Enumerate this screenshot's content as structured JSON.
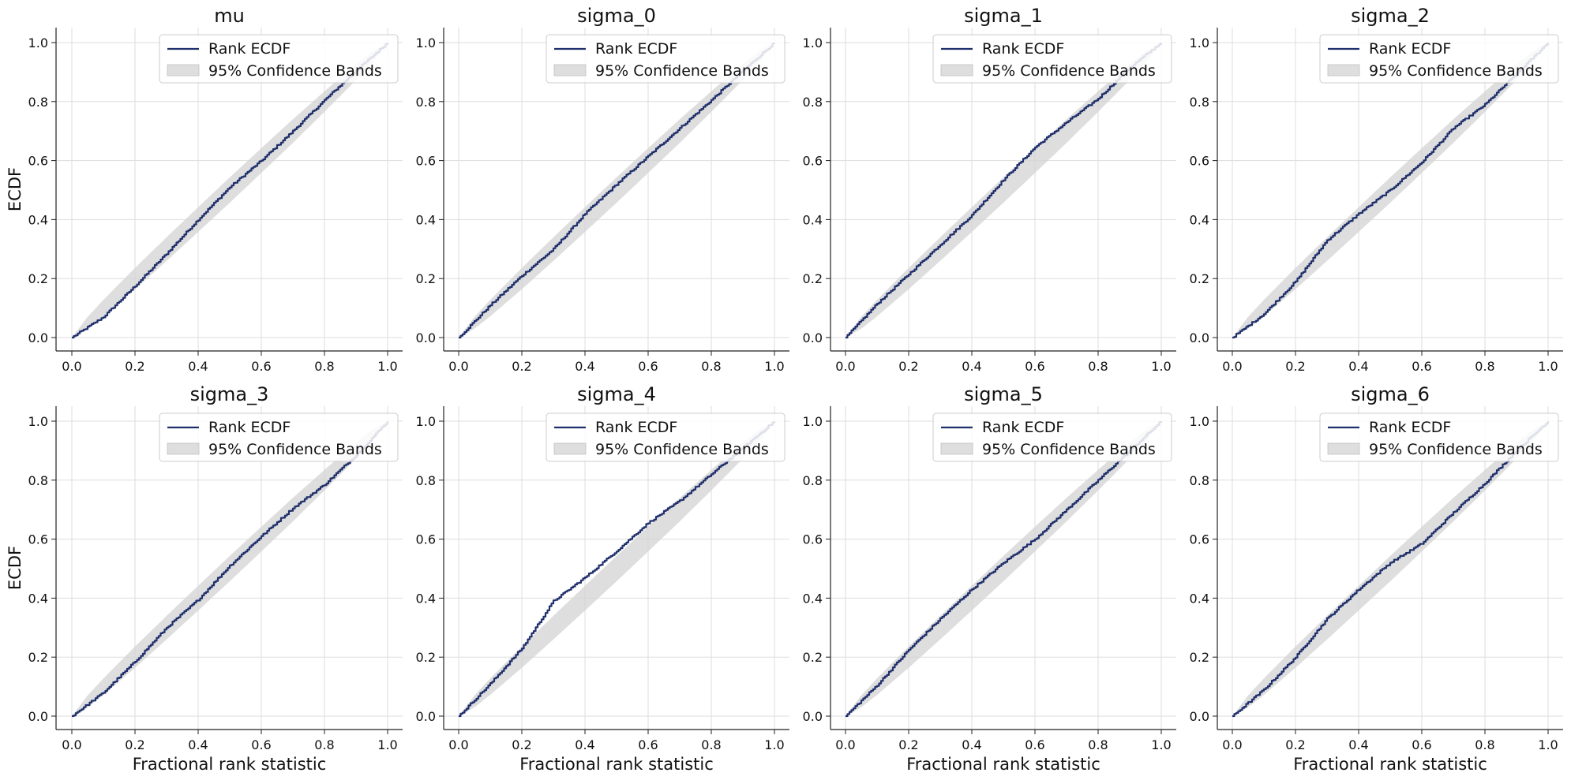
{
  "chart_data": {
    "type": "line",
    "layout_grid": "2x4",
    "shared_xlabel": "Fractional rank statistic",
    "shared_ylabel": "ECDF",
    "xlim": [
      0,
      1
    ],
    "ylim": [
      0,
      1
    ],
    "xticks": [
      "0.0",
      "0.2",
      "0.4",
      "0.6",
      "0.8",
      "1.0"
    ],
    "yticks": [
      "0.0",
      "0.2",
      "0.4",
      "0.6",
      "0.8",
      "1.0"
    ],
    "grid": true,
    "legend_position": "top-right",
    "legend": {
      "line": "Rank ECDF",
      "band": "95% Confidence Bands"
    },
    "colors": {
      "line": "#1f2f6b",
      "band": "#d3d3d3",
      "grid": "#dddddd"
    },
    "band_halfwidth": [
      [
        0,
        0
      ],
      [
        0.05,
        0.02
      ],
      [
        0.1,
        0.028
      ],
      [
        0.2,
        0.036
      ],
      [
        0.3,
        0.04
      ],
      [
        0.4,
        0.042
      ],
      [
        0.5,
        0.043
      ],
      [
        0.6,
        0.042
      ],
      [
        0.7,
        0.04
      ],
      [
        0.8,
        0.035
      ],
      [
        0.9,
        0.027
      ],
      [
        0.95,
        0.02
      ],
      [
        1,
        0
      ]
    ],
    "panels": [
      {
        "title": "mu",
        "points": [
          [
            0,
            0
          ],
          [
            0.1,
            0.07
          ],
          [
            0.2,
            0.175
          ],
          [
            0.3,
            0.285
          ],
          [
            0.4,
            0.4
          ],
          [
            0.5,
            0.51
          ],
          [
            0.6,
            0.6
          ],
          [
            0.7,
            0.7
          ],
          [
            0.8,
            0.805
          ],
          [
            0.9,
            0.905
          ],
          [
            1,
            1
          ]
        ]
      },
      {
        "title": "sigma_0",
        "points": [
          [
            0,
            0
          ],
          [
            0.1,
            0.11
          ],
          [
            0.2,
            0.21
          ],
          [
            0.3,
            0.3
          ],
          [
            0.4,
            0.42
          ],
          [
            0.5,
            0.52
          ],
          [
            0.6,
            0.615
          ],
          [
            0.7,
            0.71
          ],
          [
            0.8,
            0.805
          ],
          [
            0.9,
            0.905
          ],
          [
            1,
            1
          ]
        ]
      },
      {
        "title": "sigma_1",
        "points": [
          [
            0,
            0
          ],
          [
            0.1,
            0.115
          ],
          [
            0.2,
            0.215
          ],
          [
            0.3,
            0.315
          ],
          [
            0.4,
            0.415
          ],
          [
            0.5,
            0.535
          ],
          [
            0.6,
            0.645
          ],
          [
            0.7,
            0.73
          ],
          [
            0.8,
            0.81
          ],
          [
            0.9,
            0.915
          ],
          [
            1,
            1
          ]
        ]
      },
      {
        "title": "sigma_2",
        "points": [
          [
            0,
            0
          ],
          [
            0.1,
            0.08
          ],
          [
            0.2,
            0.19
          ],
          [
            0.3,
            0.33
          ],
          [
            0.4,
            0.42
          ],
          [
            0.5,
            0.5
          ],
          [
            0.6,
            0.595
          ],
          [
            0.7,
            0.71
          ],
          [
            0.8,
            0.79
          ],
          [
            0.9,
            0.895
          ],
          [
            1,
            1
          ]
        ]
      },
      {
        "title": "sigma_3",
        "points": [
          [
            0,
            0
          ],
          [
            0.1,
            0.08
          ],
          [
            0.2,
            0.185
          ],
          [
            0.3,
            0.3
          ],
          [
            0.4,
            0.395
          ],
          [
            0.5,
            0.51
          ],
          [
            0.6,
            0.61
          ],
          [
            0.7,
            0.705
          ],
          [
            0.8,
            0.785
          ],
          [
            0.9,
            0.885
          ],
          [
            1,
            1
          ]
        ]
      },
      {
        "title": "sigma_4",
        "points": [
          [
            0,
            0
          ],
          [
            0.1,
            0.11
          ],
          [
            0.2,
            0.23
          ],
          [
            0.3,
            0.39
          ],
          [
            0.4,
            0.47
          ],
          [
            0.5,
            0.56
          ],
          [
            0.6,
            0.655
          ],
          [
            0.7,
            0.73
          ],
          [
            0.8,
            0.82
          ],
          [
            0.9,
            0.91
          ],
          [
            1,
            1
          ]
        ]
      },
      {
        "title": "sigma_5",
        "points": [
          [
            0,
            0
          ],
          [
            0.1,
            0.105
          ],
          [
            0.2,
            0.225
          ],
          [
            0.3,
            0.33
          ],
          [
            0.4,
            0.43
          ],
          [
            0.5,
            0.52
          ],
          [
            0.6,
            0.6
          ],
          [
            0.7,
            0.7
          ],
          [
            0.8,
            0.8
          ],
          [
            0.9,
            0.9
          ],
          [
            1,
            1
          ]
        ]
      },
      {
        "title": "sigma_6",
        "points": [
          [
            0,
            0
          ],
          [
            0.1,
            0.09
          ],
          [
            0.2,
            0.2
          ],
          [
            0.3,
            0.33
          ],
          [
            0.4,
            0.43
          ],
          [
            0.5,
            0.52
          ],
          [
            0.6,
            0.585
          ],
          [
            0.7,
            0.69
          ],
          [
            0.8,
            0.79
          ],
          [
            0.9,
            0.9
          ],
          [
            1,
            1
          ]
        ]
      }
    ]
  }
}
